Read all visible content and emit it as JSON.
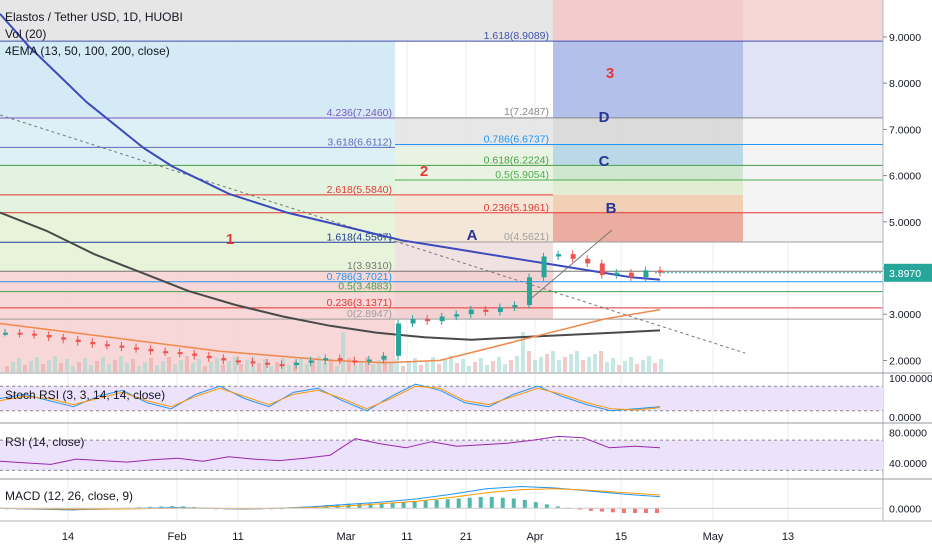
{
  "header": {
    "title": "Elastos / Tether USD, 1D, HUOBI",
    "volume_label": "Vol (20)",
    "ema_label": "4EMA (13, 50, 100, 200, close)"
  },
  "colors": {
    "background": "#ffffff",
    "grid": "#e9ecef",
    "up": "#26a69a",
    "down": "#ef5350",
    "ema_blue": "#3b4bbd",
    "ema_green": "#4caf50",
    "ema_dark": "#4a4a4a",
    "ema_orange": "#f0894a",
    "price_badge": "#26a69a",
    "fib_label": "#1e3c9a",
    "fib_label_red": "#d32f2f",
    "wave_red": "#e53935",
    "wave_blue": "#283593"
  },
  "indicators": {
    "stoch": {
      "label": "Stoch RSI (3, 3, 14, 14, close)"
    },
    "rsi": {
      "label": "RSI (14, close)"
    },
    "macd": {
      "label": "MACD (12, 26, close, 9)"
    }
  },
  "chart_data": [
    {
      "type": "line",
      "name": "price",
      "x_ticks": [
        "14",
        "Feb",
        "11",
        "Mar",
        "11",
        "21",
        "Apr",
        "15",
        "May",
        "13"
      ],
      "y_ticks": [
        "9.0000",
        "8.0000",
        "7.0000",
        "6.0000",
        "5.0000",
        "4.0000",
        "3.0000",
        "2.0000"
      ],
      "ylim": [
        1.75,
        9.8
      ],
      "last_price": "3.8970",
      "series": [
        {
          "values": [
            2.6,
            2.58,
            2.55,
            2.5,
            2.45,
            2.4,
            2.35,
            2.32,
            2.28,
            2.25,
            2.2,
            2.18,
            2.15,
            2.1,
            2.05,
            2.0,
            1.98,
            1.95,
            1.92,
            1.9,
            1.95,
            2.0,
            2.05,
            2.0,
            1.98,
            2.02,
            2.1,
            2.8,
            2.9,
            2.85,
            2.95,
            3.0,
            3.1,
            3.05,
            3.15,
            3.2,
            3.8,
            4.25,
            4.3,
            4.2,
            4.1,
            3.85,
            3.9,
            3.8,
            3.95,
            3.9
          ]
        },
        {
          "values": [
            9.5,
            8.8,
            8.2,
            7.6,
            7.1,
            6.6,
            6.2,
            5.9,
            5.6,
            5.4,
            5.2,
            5.05,
            4.9,
            4.75,
            4.6,
            4.5,
            4.4,
            4.3,
            4.2,
            4.1,
            4.0,
            3.9,
            3.8,
            3.75
          ]
        },
        {
          "values": [
            5.2,
            4.8,
            4.3,
            3.9,
            3.5,
            3.2,
            2.95,
            2.75,
            2.6,
            2.5,
            2.45,
            2.5,
            2.55,
            2.6,
            2.65
          ]
        },
        {
          "values": [
            2.8,
            2.65,
            2.5,
            2.35,
            2.2,
            2.1,
            2.0,
            1.95,
            2.0,
            2.3,
            2.6,
            2.9,
            3.1
          ]
        }
      ],
      "fib_lines": [
        {
          "label": "1.618(8.9089)",
          "value": 8.9089
        },
        {
          "label": "4.236(7.2460)",
          "value": 7.246
        },
        {
          "label": "1(7.2487)",
          "value": 7.2487
        },
        {
          "label": "0.786(6.6737)",
          "value": 6.6737
        },
        {
          "label": "3.618(6.6112)",
          "value": 6.6112
        },
        {
          "label": "0.618(6.2224)",
          "value": 6.2224
        },
        {
          "label": "0.5(5.9054)",
          "value": 5.9054
        },
        {
          "label": "2.618(5.5840)",
          "value": 5.584
        },
        {
          "label": "0.236(5.1961)",
          "value": 5.1961
        },
        {
          "label": "1.618(4.5567)",
          "value": 4.5567
        },
        {
          "label": "0(4.5621)",
          "value": 4.5621
        },
        {
          "label": "1(3.9310)",
          "value": 3.931
        },
        {
          "label": "0.786(3.7021)",
          "value": 3.7021
        },
        {
          "label": "0.5(3.4883)",
          "value": 3.4883
        },
        {
          "label": "0.236(3.1371)",
          "value": 3.1371
        },
        {
          "label": "0(2.8947)",
          "value": 2.8947
        }
      ],
      "wave_labels": [
        "1",
        "2",
        "3",
        "A",
        "B",
        "C",
        "D"
      ]
    },
    {
      "type": "line",
      "name": "stoch_rsi",
      "y_ticks": [
        "100.0000",
        "0.0000"
      ],
      "ylim": [
        0,
        100
      ],
      "series": [
        {
          "values": [
            50,
            60,
            45,
            30,
            55,
            70,
            40,
            25,
            60,
            80,
            50,
            30,
            65,
            75,
            45,
            20,
            55,
            85,
            70,
            40,
            30,
            60,
            80,
            55,
            35,
            20,
            25,
            30
          ]
        },
        {
          "values": [
            45,
            55,
            50,
            35,
            50,
            65,
            45,
            30,
            55,
            75,
            55,
            35,
            60,
            70,
            50,
            25,
            50,
            80,
            75,
            45,
            35,
            55,
            75,
            60,
            40,
            25,
            22,
            28
          ]
        }
      ]
    },
    {
      "type": "line",
      "name": "rsi",
      "y_ticks": [
        "80.0000",
        "40.0000"
      ],
      "ylim": [
        20,
        90
      ],
      "series": [
        {
          "values": [
            42,
            40,
            38,
            45,
            43,
            41,
            44,
            46,
            42,
            48,
            45,
            43,
            46,
            50,
            72,
            65,
            60,
            68,
            62,
            64,
            66,
            70,
            75,
            73,
            60,
            62,
            60
          ]
        }
      ]
    },
    {
      "type": "line",
      "name": "macd",
      "y_ticks": [
        "0.0000"
      ],
      "ylim": [
        -0.15,
        0.35
      ],
      "series": [
        {
          "values": [
            0,
            -0.01,
            -0.02,
            -0.01,
            0,
            0.01,
            0,
            -0.01,
            0,
            0.02,
            0.05,
            0.08,
            0.12,
            0.18,
            0.25,
            0.28,
            0.26,
            0.22,
            0.18,
            0.15
          ]
        },
        {
          "values": [
            0,
            -0.005,
            -0.01,
            -0.01,
            -0.005,
            0,
            0,
            -0.005,
            0,
            0.01,
            0.03,
            0.06,
            0.09,
            0.14,
            0.2,
            0.24,
            0.25,
            0.23,
            0.2,
            0.17
          ]
        }
      ]
    }
  ]
}
